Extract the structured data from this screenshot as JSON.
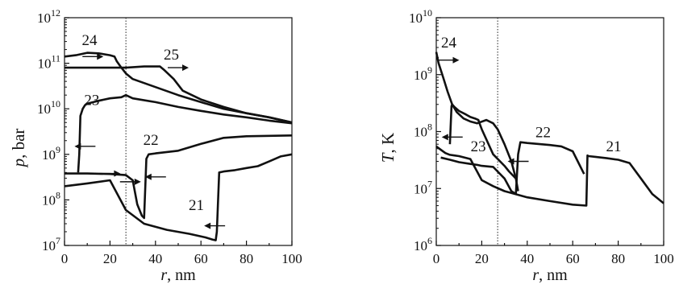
{
  "chart_data": [
    {
      "type": "line",
      "xlabel_var": "r",
      "xlabel_unit": ", nm",
      "ylabel_var": "p",
      "ylabel_unit": ", bar",
      "xlim": [
        0,
        100
      ],
      "ylim": [
        10000000,
        1000000000000
      ],
      "yscale": "log",
      "xticks": [
        0,
        20,
        40,
        60,
        80,
        100
      ],
      "xtick_labels": [
        "0",
        "20",
        "40",
        "60",
        "80",
        "100"
      ],
      "yticks": [
        10000000,
        100000000,
        1000000000,
        10000000000,
        100000000000,
        1000000000000
      ],
      "ytick_labels": [
        {
          "base": "10",
          "exp": "7"
        },
        {
          "base": "10",
          "exp": "8"
        },
        {
          "base": "10",
          "exp": "9"
        },
        {
          "base": "10",
          "exp": "10"
        },
        {
          "base": "10",
          "exp": "11"
        },
        {
          "base": "10",
          "exp": "12"
        }
      ],
      "vline_x": 27,
      "series": [
        {
          "name": "21",
          "label_pos": {
            "x": 58,
            "y": 60000000
          },
          "x": [
            0,
            10,
            20,
            27,
            35,
            45,
            55,
            62,
            65,
            66.5,
            67,
            68,
            70,
            75,
            80,
            85,
            90,
            95,
            100
          ],
          "y": [
            200000000,
            230000000,
            270000000,
            60000000,
            30000000,
            22000000,
            18000000,
            15000000,
            13500000,
            13000000,
            20000000,
            400000000,
            420000000,
            450000000,
            500000000,
            550000000,
            700000000,
            900000000,
            1000000000
          ]
        },
        {
          "name": "22",
          "label_pos": {
            "x": 38,
            "y": 1600000000
          },
          "x": [
            0,
            10,
            20,
            27,
            30,
            32,
            34,
            35,
            36,
            37,
            40,
            50,
            60,
            70,
            80,
            90,
            100
          ],
          "y": [
            380000000,
            380000000,
            370000000,
            350000000,
            270000000,
            80000000,
            45000000,
            40000000,
            800000000,
            1000000000,
            1050000000,
            1200000000,
            1700000000,
            2300000000,
            2500000000,
            2550000000,
            2600000000
          ]
        },
        {
          "name": "23",
          "label_pos": {
            "x": 12,
            "y": 12000000000
          },
          "x": [
            6,
            6.5,
            7,
            8,
            9,
            10,
            15,
            20,
            25,
            27,
            30,
            40,
            50,
            60,
            70,
            80,
            90,
            100
          ],
          "y": [
            400000000,
            1000000000,
            7000000000,
            10000000000,
            12000000000,
            13000000000,
            15000000000,
            17000000000,
            18000000000,
            20000000000,
            17000000000,
            14000000000,
            11000000000,
            9000000000,
            7500000000,
            6500000000,
            5500000000,
            4800000000
          ]
        },
        {
          "name": "24",
          "label_pos": {
            "x": 11,
            "y": 250000000000
          },
          "x": [
            0,
            5,
            10,
            15,
            20,
            22,
            23,
            25,
            27,
            30,
            40,
            50,
            60,
            70,
            80,
            90,
            100
          ],
          "y": [
            140000000000,
            150000000000,
            170000000000,
            165000000000,
            150000000000,
            140000000000,
            110000000000,
            80000000000,
            60000000000,
            45000000000,
            30000000000,
            20000000000,
            14000000000,
            10000000000,
            8000000000,
            6500000000,
            5000000000
          ]
        },
        {
          "name": "25",
          "label_pos": {
            "x": 47,
            "y": 120000000000
          },
          "x": [
            0,
            10,
            20,
            27,
            35,
            42,
            44,
            48,
            52,
            60,
            70,
            80,
            90,
            100
          ],
          "y": [
            80000000000,
            80000000000,
            80000000000,
            80000000000,
            85000000000,
            85000000000,
            70000000000,
            45000000000,
            25000000000,
            16000000000,
            11000000000,
            8000000000,
            6500000000,
            5000000000
          ]
        }
      ],
      "arrows": [
        {
          "x": 12.5,
          "y": 140000000000,
          "dir": "right"
        },
        {
          "x": 50,
          "y": 80000000000,
          "dir": "right"
        },
        {
          "x": 9,
          "y": 1500000000,
          "dir": "left"
        },
        {
          "x": 20,
          "y": 380000000,
          "dir": "right"
        },
        {
          "x": 29,
          "y": 250000000,
          "dir": "right"
        },
        {
          "x": 40,
          "y": 320000000,
          "dir": "left"
        },
        {
          "x": 66,
          "y": 27000000,
          "dir": "left"
        }
      ]
    },
    {
      "type": "line",
      "xlabel_var": "r",
      "xlabel_unit": ", nm",
      "ylabel_var": "T",
      "ylabel_unit": ", K",
      "xlim": [
        0,
        100
      ],
      "ylim": [
        1000000,
        10000000000
      ],
      "yscale": "log",
      "xticks": [
        0,
        20,
        40,
        60,
        80,
        100
      ],
      "xtick_labels": [
        "0",
        "20",
        "40",
        "60",
        "80",
        "100"
      ],
      "yticks": [
        1000000,
        10000000,
        100000000,
        1000000000,
        10000000000
      ],
      "ytick_labels": [
        {
          "base": "10",
          "exp": "6"
        },
        {
          "base": "10",
          "exp": "7"
        },
        {
          "base": "10",
          "exp": "8"
        },
        {
          "base": "10",
          "exp": "9"
        },
        {
          "base": "10",
          "exp": "10"
        }
      ],
      "vline_x": 27,
      "series": [
        {
          "name": "21",
          "label_pos": {
            "x": 78,
            "y": 45000000
          },
          "x": [
            0,
            2,
            4,
            6,
            8,
            10,
            15,
            20,
            25,
            30,
            40,
            50,
            60,
            66,
            66.5,
            67,
            70,
            75,
            80,
            85,
            90,
            95,
            100
          ],
          "y": [
            55000000,
            48000000,
            42000000,
            39000000,
            38000000,
            37000000,
            33000000,
            14000000,
            11000000,
            9000000,
            7000000,
            6000000,
            5200000,
            5000000,
            38000000,
            37000000,
            36000000,
            34000000,
            32000000,
            28000000,
            15000000,
            8000000,
            5500000
          ]
        },
        {
          "name": "22",
          "label_pos": {
            "x": 47,
            "y": 80000000
          },
          "x": [
            2,
            6,
            10,
            15,
            18,
            20,
            25,
            30,
            33,
            35,
            36,
            37,
            40,
            50,
            55,
            60,
            65
          ],
          "y": [
            35000000,
            32000000,
            29000000,
            27000000,
            26000000,
            25000000,
            24000000,
            15000000,
            9000000,
            8000000,
            40000000,
            65000000,
            63000000,
            58000000,
            55000000,
            45000000,
            18000000
          ]
        },
        {
          "name": "23",
          "label_pos": {
            "x": 18.5,
            "y": 45000000
          },
          "x": [
            6,
            6.3,
            6.7,
            7,
            8,
            10,
            13,
            15,
            17,
            18.5,
            19,
            20,
            25,
            30,
            32,
            35
          ],
          "y": [
            60000000,
            120000000,
            280000000,
            300000000,
            270000000,
            230000000,
            200000000,
            180000000,
            170000000,
            160000000,
            140000000,
            110000000,
            40000000,
            25000000,
            20000000,
            15000000
          ]
        },
        {
          "name": "24",
          "label_pos": {
            "x": 5.5,
            "y": 3000000000
          },
          "x": [
            0,
            1,
            3,
            5,
            7,
            9,
            12,
            15,
            18,
            22,
            25,
            27,
            30,
            33,
            35,
            36
          ],
          "y": [
            2500000000,
            1600000000,
            900000000,
            500000000,
            300000000,
            220000000,
            170000000,
            150000000,
            140000000,
            160000000,
            140000000,
            110000000,
            60000000,
            30000000,
            15000000,
            9000000
          ]
        }
      ],
      "arrows": [
        {
          "x": 5.5,
          "y": 1800000000,
          "dir": "right"
        },
        {
          "x": 7,
          "y": 80000000,
          "dir": "left"
        },
        {
          "x": 36,
          "y": 30000000,
          "dir": "left"
        }
      ]
    }
  ]
}
